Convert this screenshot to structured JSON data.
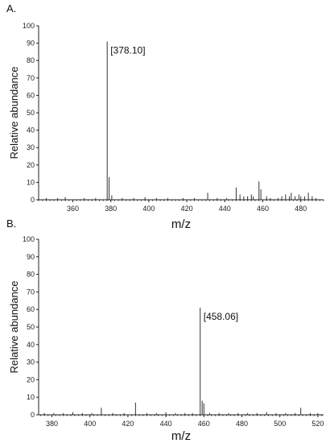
{
  "chart_data": [
    {
      "type": "bar",
      "panel_label": "A.",
      "xlabel": "m/z",
      "ylabel": "Relative abundance",
      "xlim": [
        342,
        492
      ],
      "ylim": [
        0,
        100
      ],
      "x_ticks": [
        360,
        380,
        400,
        420,
        440,
        460,
        480
      ],
      "y_ticks": [
        0,
        10,
        20,
        30,
        40,
        50,
        60,
        70,
        80,
        90,
        100
      ],
      "annotations": [
        {
          "text": "[378.10]",
          "x": 378.1,
          "y": 91
        }
      ],
      "peaks": [
        {
          "x": 346,
          "y": 1
        },
        {
          "x": 352,
          "y": 1
        },
        {
          "x": 356,
          "y": 1.5
        },
        {
          "x": 366,
          "y": 1
        },
        {
          "x": 372,
          "y": 1
        },
        {
          "x": 378.1,
          "y": 91
        },
        {
          "x": 379.1,
          "y": 13
        },
        {
          "x": 380.5,
          "y": 2.5
        },
        {
          "x": 386,
          "y": 1
        },
        {
          "x": 392,
          "y": 1
        },
        {
          "x": 398,
          "y": 1.5
        },
        {
          "x": 404,
          "y": 1
        },
        {
          "x": 410,
          "y": 1
        },
        {
          "x": 418,
          "y": 1
        },
        {
          "x": 424,
          "y": 1
        },
        {
          "x": 431,
          "y": 4
        },
        {
          "x": 436,
          "y": 1
        },
        {
          "x": 441,
          "y": 1
        },
        {
          "x": 446,
          "y": 7
        },
        {
          "x": 448,
          "y": 3
        },
        {
          "x": 450,
          "y": 2
        },
        {
          "x": 452,
          "y": 2
        },
        {
          "x": 454,
          "y": 3
        },
        {
          "x": 455,
          "y": 2
        },
        {
          "x": 458,
          "y": 10.5
        },
        {
          "x": 459,
          "y": 6
        },
        {
          "x": 462,
          "y": 2
        },
        {
          "x": 464,
          "y": 1
        },
        {
          "x": 468,
          "y": 1
        },
        {
          "x": 470,
          "y": 2
        },
        {
          "x": 472,
          "y": 3
        },
        {
          "x": 474,
          "y": 2
        },
        {
          "x": 475,
          "y": 4
        },
        {
          "x": 477,
          "y": 2
        },
        {
          "x": 479,
          "y": 3
        },
        {
          "x": 480,
          "y": 2
        },
        {
          "x": 482,
          "y": 2
        },
        {
          "x": 484,
          "y": 4
        },
        {
          "x": 486,
          "y": 2
        },
        {
          "x": 488,
          "y": 1
        }
      ]
    },
    {
      "type": "bar",
      "panel_label": "B.",
      "xlabel": "m/z",
      "ylabel": "Relative abundance",
      "xlim": [
        373,
        523
      ],
      "ylim": [
        0,
        100
      ],
      "x_ticks": [
        380,
        400,
        420,
        440,
        460,
        480,
        500,
        520
      ],
      "y_ticks": [
        0,
        10,
        20,
        30,
        40,
        50,
        60,
        70,
        80,
        90,
        100
      ],
      "annotations": [
        {
          "text": "[458.06]",
          "x": 458.06,
          "y": 61
        }
      ],
      "peaks": [
        {
          "x": 376,
          "y": 1
        },
        {
          "x": 381,
          "y": 1
        },
        {
          "x": 386,
          "y": 1
        },
        {
          "x": 391,
          "y": 1.5
        },
        {
          "x": 396,
          "y": 1
        },
        {
          "x": 401,
          "y": 1
        },
        {
          "x": 406,
          "y": 4
        },
        {
          "x": 412,
          "y": 1
        },
        {
          "x": 418,
          "y": 1
        },
        {
          "x": 424,
          "y": 7
        },
        {
          "x": 430,
          "y": 1
        },
        {
          "x": 435,
          "y": 1
        },
        {
          "x": 440,
          "y": 1.5
        },
        {
          "x": 445,
          "y": 1
        },
        {
          "x": 450,
          "y": 1
        },
        {
          "x": 454,
          "y": 1
        },
        {
          "x": 458.06,
          "y": 61
        },
        {
          "x": 459.1,
          "y": 8
        },
        {
          "x": 460,
          "y": 6.5
        },
        {
          "x": 463,
          "y": 1
        },
        {
          "x": 468,
          "y": 1
        },
        {
          "x": 473,
          "y": 1
        },
        {
          "x": 478,
          "y": 1
        },
        {
          "x": 483,
          "y": 1
        },
        {
          "x": 488,
          "y": 1
        },
        {
          "x": 493,
          "y": 1.5
        },
        {
          "x": 498,
          "y": 1
        },
        {
          "x": 503,
          "y": 1
        },
        {
          "x": 508,
          "y": 1
        },
        {
          "x": 511,
          "y": 4
        },
        {
          "x": 516,
          "y": 1
        },
        {
          "x": 520,
          "y": 1
        }
      ]
    }
  ]
}
